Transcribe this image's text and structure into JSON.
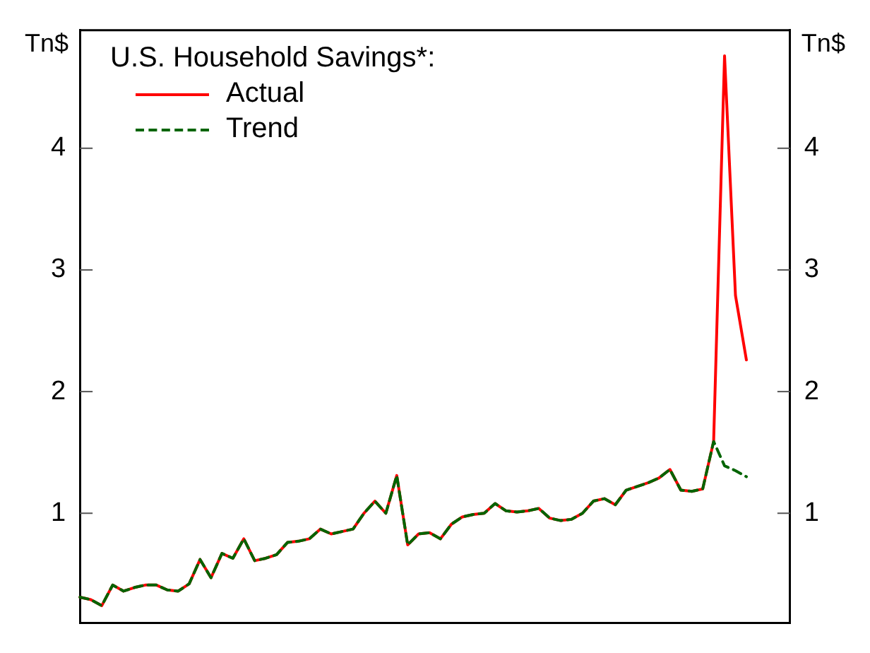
{
  "chart_data": {
    "type": "line",
    "ylabel": "Tn$",
    "y2label": "Tn$",
    "legend_title": "U.S. Household Savings*:",
    "categories": [
      null,
      null,
      null,
      null,
      null,
      null,
      null,
      null,
      null,
      null,
      null,
      null,
      null,
      null,
      null,
      null,
      null,
      null,
      null,
      null,
      null,
      null,
      null,
      null,
      null,
      null,
      null,
      null,
      null,
      null,
      null,
      null,
      null,
      null,
      null,
      null,
      null,
      null,
      null,
      null,
      null,
      null,
      null,
      null,
      null,
      null,
      null,
      null,
      null,
      null,
      null,
      null,
      null,
      null,
      null,
      null,
      null,
      null,
      null,
      null,
      null,
      null,
      null,
      null,
      null,
      null
    ],
    "series": [
      {
        "name": "Actual",
        "color": "#ff0000",
        "line_style": "solid",
        "values": [
          0.31,
          0.29,
          0.24,
          0.41,
          0.36,
          0.39,
          0.41,
          0.41,
          0.37,
          0.36,
          0.42,
          0.62,
          0.47,
          0.67,
          0.63,
          0.79,
          0.61,
          0.63,
          0.66,
          0.76,
          0.77,
          0.79,
          0.87,
          0.83,
          0.85,
          0.87,
          1.0,
          1.1,
          1.0,
          1.31,
          0.74,
          0.83,
          0.84,
          0.79,
          0.91,
          0.97,
          0.99,
          1.0,
          1.08,
          1.02,
          1.01,
          1.02,
          1.04,
          0.96,
          0.94,
          0.95,
          1.0,
          1.1,
          1.12,
          1.07,
          1.19,
          1.22,
          1.25,
          1.29,
          1.36,
          1.19,
          1.18,
          1.2,
          1.59,
          4.76,
          2.79,
          2.26,
          null,
          null,
          null,
          null
        ]
      },
      {
        "name": "Trend",
        "color": "#006400",
        "line_style": "dashed",
        "values": [
          0.31,
          0.29,
          0.24,
          0.41,
          0.36,
          0.39,
          0.41,
          0.41,
          0.37,
          0.36,
          0.42,
          0.62,
          0.47,
          0.67,
          0.63,
          0.79,
          0.61,
          0.63,
          0.66,
          0.76,
          0.77,
          0.79,
          0.87,
          0.83,
          0.85,
          0.87,
          1.0,
          1.1,
          1.0,
          1.31,
          0.74,
          0.83,
          0.84,
          0.79,
          0.91,
          0.97,
          0.99,
          1.0,
          1.08,
          1.02,
          1.01,
          1.02,
          1.04,
          0.96,
          0.94,
          0.95,
          1.0,
          1.1,
          1.12,
          1.07,
          1.19,
          1.22,
          1.25,
          1.29,
          1.36,
          1.19,
          1.18,
          1.2,
          1.59,
          1.39,
          1.35,
          1.3,
          null,
          null,
          null,
          null
        ]
      }
    ],
    "ylim": [
      0.1,
      4.97
    ],
    "yticks": [
      1,
      2,
      3,
      4
    ],
    "y2lim": [
      0.1,
      4.97
    ],
    "y2ticks": [
      1,
      2,
      3,
      4
    ],
    "grid": false,
    "legend": "top left",
    "marker": "none",
    "tick_labels": "y"
  }
}
